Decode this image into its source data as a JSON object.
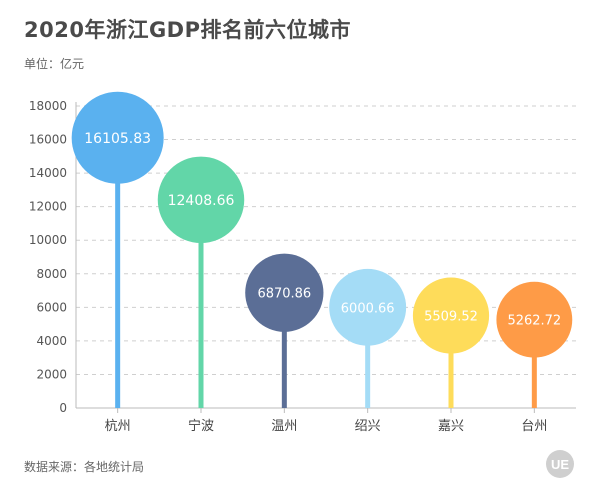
{
  "header": {
    "title": "2020年浙江GDP排名前六位城市",
    "unit": "单位：亿元"
  },
  "footer": {
    "source": "数据来源：各地统计局"
  },
  "logo": {
    "text": "UE",
    "icon": "ue-logo-icon",
    "color": "#cccccc"
  },
  "chart_data": {
    "type": "lollipop",
    "title": "2020年浙江GDP排名前六位城市",
    "ylabel": "单位：亿元",
    "xlabel": "",
    "ylim": [
      0,
      18000
    ],
    "yticks": [
      0,
      2000,
      4000,
      6000,
      8000,
      10000,
      12000,
      14000,
      16000,
      18000
    ],
    "grid": true,
    "categories": [
      "杭州",
      "宁波",
      "温州",
      "绍兴",
      "嘉兴",
      "台州"
    ],
    "values": [
      16105.83,
      12408.66,
      6870.86,
      6000.66,
      5509.52,
      5262.72
    ],
    "value_labels": [
      "16105.83",
      "12408.66",
      "6870.86",
      "6000.66",
      "5509.52",
      "5262.72"
    ],
    "colors": [
      "#5ab1ef",
      "#62d6a8",
      "#5b6e96",
      "#a4dcf6",
      "#fedc5a",
      "#fe9b47"
    ]
  }
}
